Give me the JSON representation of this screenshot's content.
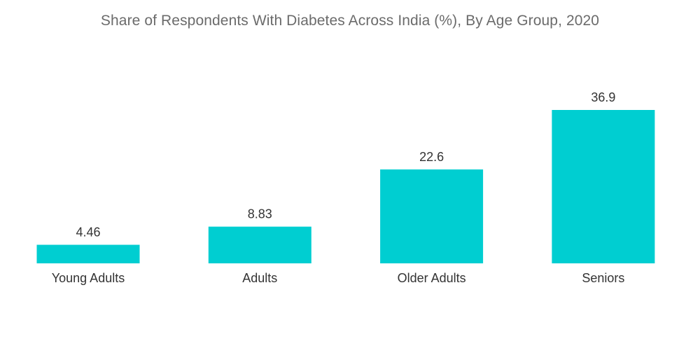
{
  "chart_data": {
    "type": "bar",
    "title": "Share of Respondents With Diabetes Across India (%), By Age Group, 2020",
    "categories": [
      "Young Adults",
      "Adults",
      "Older Adults",
      "Seniors"
    ],
    "values": [
      4.46,
      8.83,
      22.6,
      36.9
    ],
    "value_labels": [
      "4.46",
      "8.83",
      "22.6",
      "36.9"
    ],
    "xlabel": "",
    "ylabel": "",
    "ylim": [
      0,
      36.9
    ],
    "grid": false,
    "legend": "none",
    "bar_color": "#00CED1"
  }
}
